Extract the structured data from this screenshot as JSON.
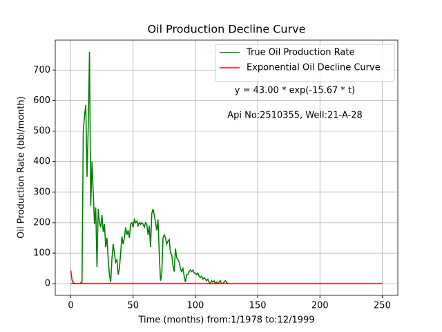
{
  "chart_data": {
    "type": "line",
    "title": "Oil Production Decline Curve",
    "x_label": "Time (months) from:1/1978 to:12/1999",
    "y_label": "Oil Production Rate (bbl/month)",
    "annotations": [
      "y = 43.00 * exp(-15.67 * t)",
      "Api No:2510355, Well:21-A-28"
    ],
    "xlim": [
      -12.5,
      262.5
    ],
    "ylim": [
      -38,
      798
    ],
    "xticks": [
      0,
      50,
      100,
      150,
      200,
      250
    ],
    "yticks": [
      0,
      100,
      200,
      300,
      400,
      500,
      600,
      700
    ],
    "grid": true,
    "legend": "upper right",
    "series": [
      {
        "name": "True Oil Production Rate",
        "color": "#008000",
        "x": [
          0,
          1,
          2,
          3,
          4,
          5,
          6,
          7,
          8,
          9,
          10,
          11,
          12,
          13,
          14,
          15,
          16,
          17,
          18,
          19,
          20,
          21,
          22,
          23,
          24,
          25,
          26,
          27,
          28,
          29,
          30,
          31,
          32,
          33,
          34,
          35,
          36,
          37,
          38,
          39,
          40,
          41,
          42,
          43,
          44,
          45,
          46,
          47,
          48,
          49,
          50,
          51,
          52,
          53,
          54,
          55,
          56,
          57,
          58,
          59,
          60,
          61,
          62,
          63,
          64,
          65,
          66,
          67,
          68,
          69,
          70,
          71,
          72,
          73,
          74,
          75,
          76,
          77,
          78,
          79,
          80,
          81,
          82,
          83,
          84,
          85,
          86,
          87,
          88,
          89,
          90,
          91,
          92,
          93,
          94,
          95,
          96,
          97,
          98,
          99,
          100,
          101,
          102,
          103,
          104,
          105,
          106,
          107,
          108,
          109,
          110,
          111,
          112,
          113,
          114,
          115,
          116,
          117,
          118,
          119,
          120,
          121,
          122,
          123,
          124,
          125,
          126,
          127,
          128
        ],
        "values": [
          0,
          0,
          0,
          0,
          0,
          0,
          0,
          0,
          3,
          5,
          500,
          550,
          585,
          350,
          520,
          760,
          255,
          400,
          300,
          195,
          250,
          55,
          245,
          200,
          185,
          225,
          170,
          195,
          120,
          150,
          80,
          30,
          5,
          80,
          130,
          100,
          70,
          80,
          30,
          50,
          100,
          155,
          130,
          150,
          185,
          160,
          175,
          150,
          195,
          200,
          185,
          210,
          200,
          205,
          190,
          200,
          195,
          200,
          195,
          185,
          200,
          195,
          160,
          190,
          120,
          230,
          245,
          225,
          200,
          175,
          210,
          100,
          10,
          30,
          150,
          160,
          150,
          130,
          140,
          145,
          100,
          95,
          60,
          40,
          115,
          85,
          80,
          70,
          50,
          40,
          50,
          25,
          5,
          30,
          30,
          40,
          45,
          40,
          45,
          35,
          35,
          30,
          35,
          25,
          20,
          25,
          15,
          20,
          15,
          10,
          15,
          5,
          0,
          10,
          5,
          10,
          0,
          5,
          0,
          5,
          10,
          0,
          0,
          5,
          10,
          5,
          0,
          0,
          0
        ]
      },
      {
        "name": "Exponential Oil Decline Curve",
        "color": "#ff0000",
        "x": [
          0,
          1,
          2,
          3,
          4,
          250
        ],
        "values": [
          43,
          11.7,
          3.2,
          0.9,
          0.2,
          0
        ]
      }
    ]
  }
}
